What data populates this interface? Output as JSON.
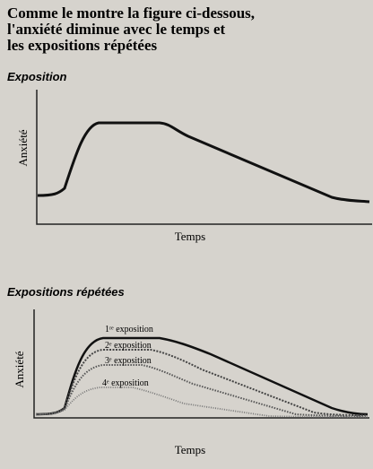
{
  "header": {
    "title_lines": [
      "Comme le montre la figure ci-dessous,",
      "l'anxiété diminue avec le temps et",
      "les expositions répétées"
    ]
  },
  "figures": [
    {
      "title": "Exposition",
      "y_label": "Anxiété",
      "x_label": "Temps"
    },
    {
      "title": "Expositions répétées",
      "y_label": "Anxiété",
      "x_label": "Temps",
      "curve_labels": [
        "1ʳᵉ exposition",
        "2ᵉ exposition",
        "3ᵉ exposition",
        "4ᵉ exposition"
      ]
    }
  ]
}
